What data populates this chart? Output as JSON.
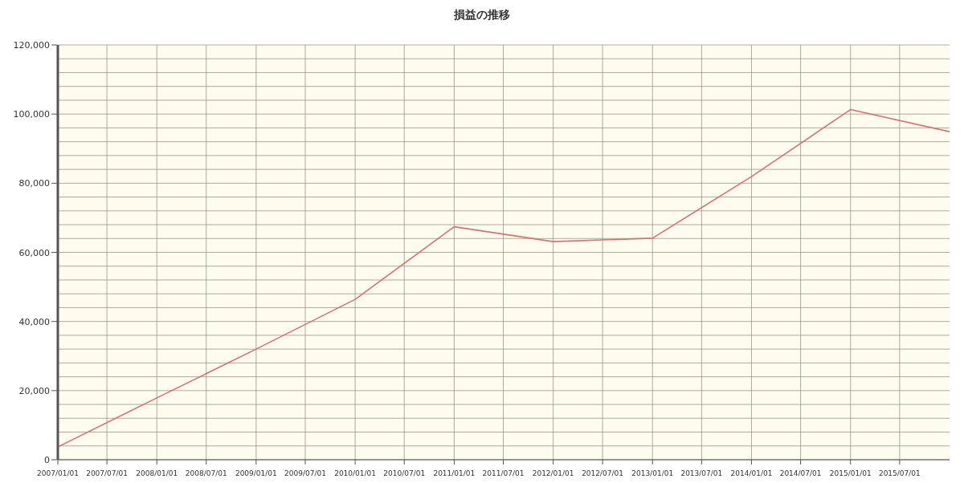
{
  "chart_data": {
    "type": "line",
    "title": "損益の推移",
    "x": [
      "2007-01-01",
      "2008-01-01",
      "2009-01-01",
      "2010-01-01",
      "2011-01-01",
      "2012-01-01",
      "2013-01-01",
      "2014-01-01",
      "2015-01-01",
      "2016-01-01"
    ],
    "series": [
      {
        "color": "#d9716f",
        "values": [
          3700,
          17900,
          32000,
          46400,
          67400,
          63100,
          64100,
          81900,
          101300,
          94900
        ]
      }
    ],
    "xlim": [
      "2007-01-01",
      "2016-01-01"
    ],
    "xticks": [
      {
        "value": "2007-01-01",
        "label": "2007/01/01"
      },
      {
        "value": "2007-07-01",
        "label": "2007/07/01"
      },
      {
        "value": "2008-01-01",
        "label": "2008/01/01"
      },
      {
        "value": "2008-07-01",
        "label": "2008/07/01"
      },
      {
        "value": "2009-01-01",
        "label": "2009/01/01"
      },
      {
        "value": "2009-07-01",
        "label": "2009/07/01"
      },
      {
        "value": "2010-01-01",
        "label": "2010/01/01"
      },
      {
        "value": "2010-07-01",
        "label": "2010/07/01"
      },
      {
        "value": "2011-01-01",
        "label": "2011/01/01"
      },
      {
        "value": "2011-07-01",
        "label": "2011/07/01"
      },
      {
        "value": "2012-01-01",
        "label": "2012/01/01"
      },
      {
        "value": "2012-07-01",
        "label": "2012/07/01"
      },
      {
        "value": "2013-01-01",
        "label": "2013/01/01"
      },
      {
        "value": "2013-07-01",
        "label": "2013/07/01"
      },
      {
        "value": "2014-01-01",
        "label": "2014/01/01"
      },
      {
        "value": "2014-07-01",
        "label": "2014/07/01"
      },
      {
        "value": "2015-01-01",
        "label": "2015/01/01"
      },
      {
        "value": "2015-07-01",
        "label": "2015/07/01"
      }
    ],
    "ylim": [
      0,
      120000
    ],
    "yticks": [
      {
        "value": 0,
        "label": "0"
      },
      {
        "value": 4000,
        "label": null
      },
      {
        "value": 8000,
        "label": null
      },
      {
        "value": 12000,
        "label": null
      },
      {
        "value": 16000,
        "label": null
      },
      {
        "value": 20000,
        "label": "20,000"
      },
      {
        "value": 24000,
        "label": null
      },
      {
        "value": 28000,
        "label": null
      },
      {
        "value": 32000,
        "label": null
      },
      {
        "value": 36000,
        "label": null
      },
      {
        "value": 40000,
        "label": "40,000"
      },
      {
        "value": 44000,
        "label": null
      },
      {
        "value": 48000,
        "label": null
      },
      {
        "value": 52000,
        "label": null
      },
      {
        "value": 56000,
        "label": null
      },
      {
        "value": 60000,
        "label": "60,000"
      },
      {
        "value": 64000,
        "label": null
      },
      {
        "value": 68000,
        "label": null
      },
      {
        "value": 72000,
        "label": null
      },
      {
        "value": 76000,
        "label": null
      },
      {
        "value": 80000,
        "label": "80,000"
      },
      {
        "value": 84000,
        "label": null
      },
      {
        "value": 88000,
        "label": null
      },
      {
        "value": 92000,
        "label": null
      },
      {
        "value": 96000,
        "label": null
      },
      {
        "value": 100000,
        "label": "100,000"
      },
      {
        "value": 104000,
        "label": null
      },
      {
        "value": 108000,
        "label": null
      },
      {
        "value": 112000,
        "label": null
      },
      {
        "value": 116000,
        "label": null
      },
      {
        "value": 120000,
        "label": "120,000"
      }
    ],
    "grid": true,
    "marker": "none",
    "line_style": "solid"
  }
}
